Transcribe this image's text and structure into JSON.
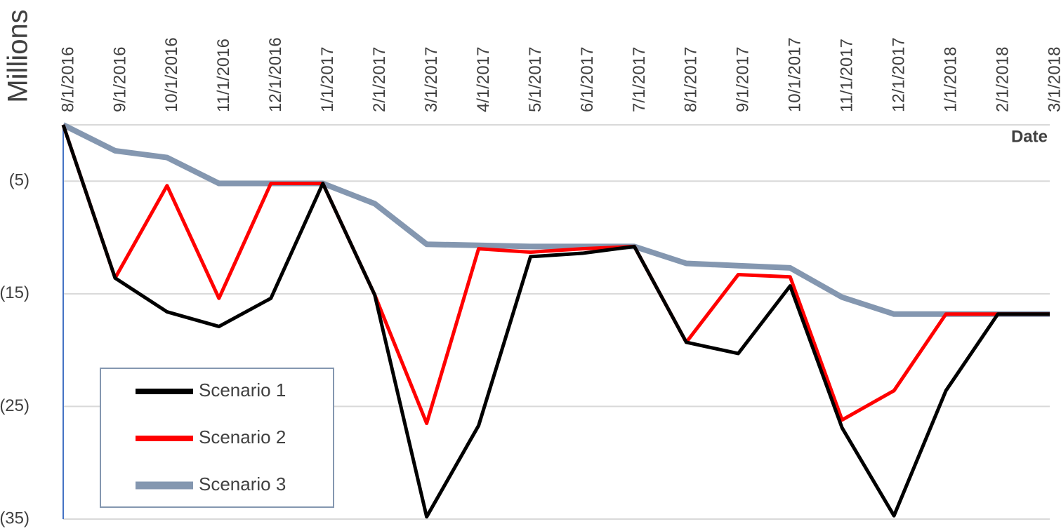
{
  "chart_data": {
    "type": "line",
    "y_label": "Millions",
    "x_label": "Date",
    "categories": [
      "8/1/2016",
      "9/1/2016",
      "10/1/2016",
      "11/1/2016",
      "12/1/2016",
      "1/1/2017",
      "2/1/2017",
      "3/1/2017",
      "4/1/2017",
      "5/1/2017",
      "6/1/2017",
      "7/1/2017",
      "8/1/2017",
      "9/1/2017",
      "10/1/2017",
      "11/1/2017",
      "12/1/2017",
      "1/1/2018",
      "2/1/2018",
      "3/1/2018"
    ],
    "series": [
      {
        "name": "Scenario 1",
        "color": "#000000",
        "values": [
          0,
          -13.6,
          -16.6,
          -17.9,
          -15.4,
          -5.2,
          -15.1,
          -34.8,
          -26.7,
          -11.7,
          -11.4,
          -10.8,
          -19.3,
          -20.3,
          -14.3,
          -26.9,
          -34.7,
          -23.6,
          -16.8,
          -16.8
        ]
      },
      {
        "name": "Scenario 2",
        "color": "#ff0000",
        "values": [
          0,
          -13.6,
          -5.4,
          -15.4,
          -5.2,
          -5.2,
          -15.1,
          -26.5,
          -11.0,
          -11.3,
          -11.0,
          -10.8,
          -19.3,
          -13.3,
          -13.5,
          -26.2,
          -23.6,
          -16.8,
          -16.8,
          -16.8
        ]
      },
      {
        "name": "Scenario 3",
        "color": "#8497b0",
        "values": [
          0,
          -2.3,
          -2.9,
          -5.2,
          -5.2,
          -5.2,
          -7.0,
          -10.6,
          -10.7,
          -10.8,
          -10.8,
          -10.8,
          -12.3,
          -12.5,
          -12.7,
          -15.3,
          -16.8,
          -16.8,
          -16.8,
          -16.8
        ]
      }
    ],
    "ylim": [
      -35,
      0
    ],
    "yticks": [
      {
        "value": -5,
        "label": "(5)"
      },
      {
        "value": -15,
        "label": "(15)"
      },
      {
        "value": -25,
        "label": "(25)"
      },
      {
        "value": -35,
        "label": "(35)"
      }
    ],
    "grid": true
  }
}
